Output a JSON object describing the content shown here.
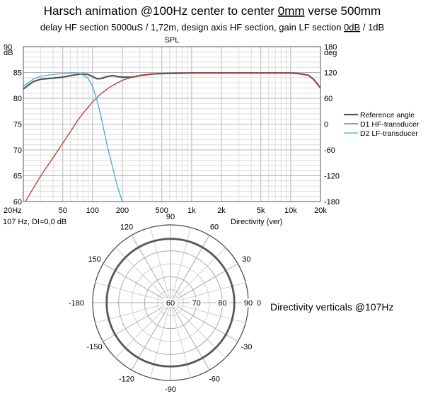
{
  "header": {
    "title_pre": "Harsch animation @100Hz center to center ",
    "title_u1": "0mm",
    "title_mid": " verse 500mm",
    "subtitle_pre": "delay HF section 5000uS / 1,72m, design axis HF section, gain LF section ",
    "subtitle_u": "0dB",
    "subtitle_post": " / 1dB"
  },
  "spl_chart": {
    "type": "line",
    "title": "SPL",
    "left_axis_unit": "dB",
    "right_axis_unit": "deg",
    "x_label": "Directivity (ver)",
    "info_label": "107 Hz, DI=0,0 dB",
    "x_scale": "log",
    "xlim": [
      20,
      20000
    ],
    "ylim": [
      60,
      90
    ],
    "y2lim": [
      -180,
      180
    ],
    "x_ticks": [
      {
        "v": 20,
        "label": "20Hz"
      },
      {
        "v": 50,
        "label": "50"
      },
      {
        "v": 100,
        "label": "100"
      },
      {
        "v": 200,
        "label": "200"
      },
      {
        "v": 500,
        "label": "500"
      },
      {
        "v": 1000,
        "label": "1k"
      },
      {
        "v": 2000,
        "label": "2k"
      },
      {
        "v": 5000,
        "label": "5k"
      },
      {
        "v": 10000,
        "label": "10k"
      },
      {
        "v": 20000,
        "label": "20k"
      }
    ],
    "y_ticks": [
      {
        "v": 90,
        "label": "90"
      },
      {
        "v": 85,
        "label": "85"
      },
      {
        "v": 80,
        "label": "80"
      },
      {
        "v": 75,
        "label": "75"
      },
      {
        "v": 70,
        "label": "70"
      },
      {
        "v": 65,
        "label": "65"
      },
      {
        "v": 60,
        "label": "60"
      }
    ],
    "y2_ticks": [
      {
        "v": 180,
        "label": "180"
      },
      {
        "v": 120,
        "label": "120"
      },
      {
        "v": 60,
        "label": "60"
      },
      {
        "v": 0,
        "label": "0"
      },
      {
        "v": -60,
        "label": "-60"
      },
      {
        "v": -120,
        "label": "-120"
      },
      {
        "v": -180,
        "label": "-180"
      }
    ],
    "grid": true,
    "legend_position": "right-middle",
    "series": [
      {
        "name": "Reference angle",
        "color": "#555555",
        "width": 2.2,
        "x": [
          20,
          25,
          30,
          40,
          50,
          60,
          70,
          80,
          90,
          100,
          110,
          120,
          140,
          160,
          180,
          200,
          250,
          300,
          400,
          500,
          1000,
          2000,
          5000,
          8000,
          10000,
          12000,
          15000,
          17000,
          20000
        ],
        "y": [
          81.8,
          83.2,
          83.7,
          83.9,
          84.1,
          84.4,
          84.6,
          84.7,
          84.6,
          84.2,
          83.8,
          83.8,
          84.2,
          84.4,
          84.2,
          84.1,
          84.1,
          84.4,
          84.7,
          84.8,
          84.9,
          84.9,
          84.9,
          84.9,
          84.9,
          84.8,
          84.5,
          83.7,
          82.0
        ]
      },
      {
        "name": "D1 HF-transducer",
        "color": "#c0392b",
        "width": 1.3,
        "x": [
          21,
          25,
          30,
          40,
          50,
          60,
          70,
          80,
          100,
          120,
          150,
          200,
          250,
          300,
          400,
          500,
          1000,
          2000,
          5000,
          8000,
          10000,
          12000,
          15000,
          17000,
          20000
        ],
        "y": [
          60,
          62.5,
          65,
          68.5,
          71.3,
          73.6,
          75.6,
          77.1,
          79.3,
          80.8,
          82.2,
          83.5,
          84.1,
          84.4,
          84.7,
          84.8,
          84.9,
          84.9,
          84.9,
          84.9,
          84.9,
          84.8,
          84.5,
          83.7,
          82.0
        ]
      },
      {
        "name": "D2 LF-transducer",
        "color": "#3fb0d0",
        "width": 1.3,
        "x": [
          20,
          25,
          30,
          40,
          50,
          60,
          70,
          80,
          90,
          100,
          110,
          120,
          140,
          160,
          180,
          200
        ],
        "y": [
          82.3,
          83.7,
          84.3,
          84.6,
          84.8,
          84.9,
          84.9,
          84.5,
          83.9,
          82.3,
          79.8,
          77.0,
          71.0,
          66.5,
          62.6,
          60.0
        ]
      }
    ]
  },
  "polar_chart": {
    "type": "polar",
    "caption": "Directivity verticals @107Hz",
    "radial_ticks": [
      {
        "v": 60,
        "label": "60"
      },
      {
        "v": 70,
        "label": "70"
      },
      {
        "v": 80,
        "label": "80"
      },
      {
        "v": 90,
        "label": "90"
      }
    ],
    "rlim": [
      60,
      90
    ],
    "angle_labels": [
      {
        "v": 0,
        "label": "0"
      },
      {
        "v": 30,
        "label": "30"
      },
      {
        "v": 60,
        "label": "60"
      },
      {
        "v": 90,
        "label": "90"
      },
      {
        "v": 120,
        "label": "120"
      },
      {
        "v": 150,
        "label": "150"
      },
      {
        "v": 180,
        "label": "-180"
      },
      {
        "v": -150,
        "label": "-150"
      },
      {
        "v": -120,
        "label": "-120"
      },
      {
        "v": -90,
        "label": "-90"
      },
      {
        "v": -60,
        "label": "-60"
      },
      {
        "v": -30,
        "label": "-30"
      }
    ],
    "series": [
      {
        "name": "Reference angle",
        "color": "#555555",
        "width": 2.6,
        "level_db": 84.6
      }
    ]
  }
}
